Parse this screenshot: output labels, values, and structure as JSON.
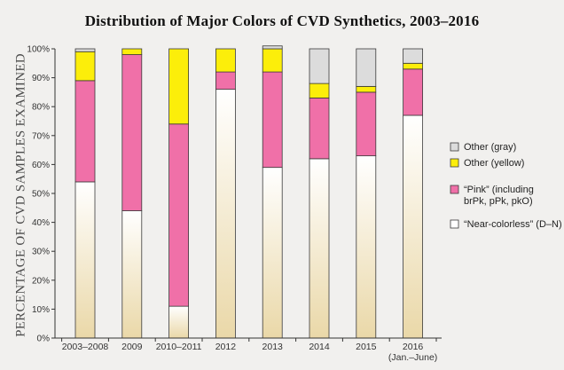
{
  "chart_data": {
    "type": "bar",
    "stacked": true,
    "title": "Distribution of Major Colors of CVD Synthetics, 2003–2016",
    "ylabel": "PERCENTAGE OF CVD SAMPLES EXAMINED",
    "ylim": [
      0,
      100
    ],
    "yticks": [
      "0%",
      "10%",
      "20%",
      "30%",
      "40%",
      "50%",
      "60%",
      "70%",
      "80%",
      "90%",
      "100%"
    ],
    "categories": [
      "2003–2008",
      "2009",
      "2010–2011",
      "2012",
      "2013",
      "2014",
      "2015",
      "2016"
    ],
    "category_sublabels": [
      "",
      "",
      "",
      "",
      "",
      "",
      "",
      "(Jan.–June)"
    ],
    "series": [
      {
        "name": "“Near-colorless” (D–N)",
        "values": [
          54,
          44,
          11,
          86,
          59,
          62,
          63,
          77
        ],
        "color": "#ffffff"
      },
      {
        "name": "“Pink” (including brPk, pPk, pkO)",
        "values": [
          35,
          54,
          63,
          6,
          33,
          21,
          22,
          16
        ],
        "color": "#f070a8"
      },
      {
        "name": "Other (yellow)",
        "values": [
          10,
          2,
          26,
          8,
          8,
          5,
          2,
          2
        ],
        "color": "#fcee0a"
      },
      {
        "name": "Other (gray)",
        "values": [
          1,
          0,
          0,
          0,
          1,
          12,
          13,
          5
        ],
        "color": "#dcdcdc"
      }
    ],
    "legend": {
      "position": "right",
      "items": [
        {
          "label_lines": [
            "Other (gray)"
          ],
          "color": "#dcdcdc"
        },
        {
          "label_lines": [
            "Other (yellow)"
          ],
          "color": "#fcee0a"
        },
        {
          "label_lines": [
            "“Pink” (including",
            "brPk, pPk, pkO)"
          ],
          "color": "#f070a8"
        },
        {
          "label_lines": [
            "“Near-colorless” (D–N)"
          ],
          "color": "#ffffff"
        }
      ]
    },
    "colors": {
      "axis": "#333333",
      "bar_outline": "#3a3a3a",
      "near_colorless_tint": "#ead8a8"
    }
  }
}
